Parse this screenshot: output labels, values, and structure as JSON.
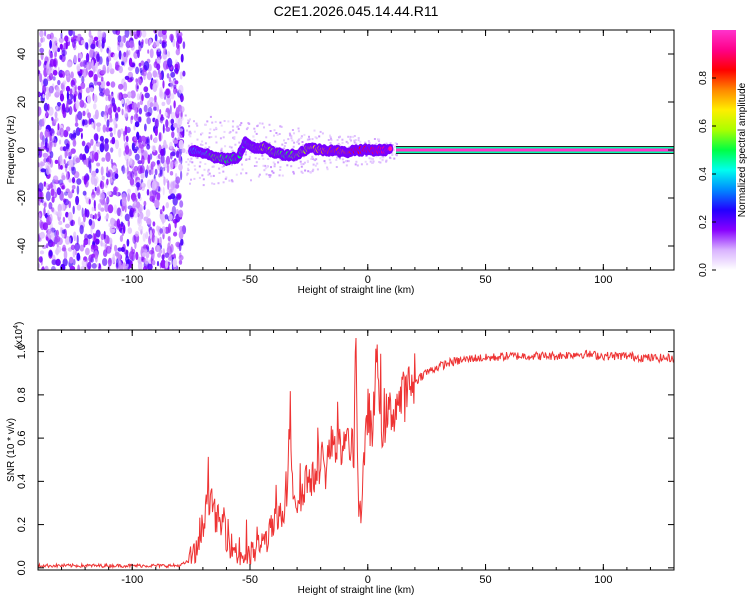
{
  "title": "C2E1.2026.045.14.44.R11",
  "chart_data": [
    {
      "type": "heatmap",
      "panel": "spectrogram",
      "xlabel": "Height of straight line (km)",
      "ylabel": "Frequency (Hz)",
      "xlim": [
        -140,
        130
      ],
      "ylim": [
        -50,
        50
      ],
      "xticks": [
        -100,
        -50,
        0,
        50,
        100
      ],
      "yticks": [
        -40,
        -20,
        0,
        20,
        40
      ],
      "xtick_labels": [
        "-100",
        "-50",
        "0",
        "50",
        "100"
      ],
      "ytick_labels": [
        "-40",
        "-20",
        "0",
        "20",
        "40"
      ],
      "noise_region_x": [
        -140,
        -78
      ],
      "transition_region_x": [
        -78,
        12
      ],
      "stable_line": {
        "x": [
          12,
          130
        ],
        "frequency_hz": 0,
        "amplitude": 1.0
      },
      "ridge_points": [
        {
          "x": -75,
          "f": 0,
          "a": 0.35
        },
        {
          "x": -70,
          "f": -1,
          "a": 0.4
        },
        {
          "x": -65,
          "f": -3,
          "a": 0.55
        },
        {
          "x": -60,
          "f": -4,
          "a": 0.5
        },
        {
          "x": -55,
          "f": -3,
          "a": 0.5
        },
        {
          "x": -52,
          "f": 3,
          "a": 0.45
        },
        {
          "x": -48,
          "f": 1,
          "a": 0.55
        },
        {
          "x": -44,
          "f": 1,
          "a": 0.6
        },
        {
          "x": -40,
          "f": -1,
          "a": 0.55
        },
        {
          "x": -35,
          "f": -2,
          "a": 0.5
        },
        {
          "x": -30,
          "f": -2,
          "a": 0.55
        },
        {
          "x": -25,
          "f": 1,
          "a": 0.6
        },
        {
          "x": -20,
          "f": 0,
          "a": 0.7
        },
        {
          "x": -15,
          "f": 0,
          "a": 0.8
        },
        {
          "x": -10,
          "f": -1,
          "a": 0.75
        },
        {
          "x": -5,
          "f": 0,
          "a": 0.85
        },
        {
          "x": 0,
          "f": 0,
          "a": 0.85
        },
        {
          "x": 5,
          "f": 0,
          "a": 0.9
        },
        {
          "x": 10,
          "f": 0,
          "a": 0.95
        }
      ],
      "colorbar": {
        "label": "Normalized spectral amplitude",
        "range": [
          0,
          1
        ],
        "ticks": [
          0.0,
          0.2,
          0.4,
          0.6,
          0.8
        ],
        "tick_labels": [
          "0.0",
          "0.2",
          "0.4",
          "0.6",
          "0.8"
        ],
        "colors": [
          "#ffffff",
          "#d9b3ff",
          "#8800ff",
          "#2200ff",
          "#0088ff",
          "#00ffee",
          "#00ff44",
          "#aaff00",
          "#ffee00",
          "#ff8800",
          "#ff0000",
          "#ff0088",
          "#ff33cc"
        ]
      }
    },
    {
      "type": "line",
      "panel": "snr",
      "xlabel": "Height of straight line (km)",
      "ylabel": "SNR (10 * v/v)",
      "multiplier_base": "(x10",
      "multiplier_exp": "4",
      "multiplier_close": ")",
      "xlim": [
        -140,
        130
      ],
      "ylim": [
        -0.01,
        1.1
      ],
      "xticks": [
        -100,
        -50,
        0,
        50,
        100
      ],
      "yticks": [
        0.0,
        0.2,
        0.4,
        0.6,
        0.8,
        1.0
      ],
      "xtick_labels": [
        "-100",
        "-50",
        "0",
        "50",
        "100"
      ],
      "ytick_labels": [
        "0.0",
        "0.2",
        "0.4",
        "0.6",
        "0.8",
        "1.0"
      ],
      "color": "#ee3333",
      "series": [
        {
          "name": "SNR",
          "x": [
            -140,
            -120,
            -100,
            -80,
            -76,
            -72,
            -70,
            -68,
            -66,
            -64,
            -62,
            -60,
            -58,
            -56,
            -54,
            -52,
            -50,
            -48,
            -46,
            -44,
            -42,
            -40,
            -38,
            -36,
            -34,
            -33,
            -32,
            -30,
            -28,
            -26,
            -24,
            -22,
            -20,
            -18,
            -16,
            -14,
            -12,
            -10,
            -8,
            -6,
            -5,
            -4,
            -3,
            -2,
            -1,
            0,
            2,
            4,
            6,
            8,
            10,
            12,
            14,
            16,
            18,
            20,
            22,
            24,
            26,
            28,
            30,
            35,
            40,
            45,
            50,
            60,
            70,
            80,
            90,
            100,
            110,
            120,
            130
          ],
          "y": [
            0.01,
            0.01,
            0.01,
            0.01,
            0.03,
            0.08,
            0.2,
            0.35,
            0.28,
            0.22,
            0.2,
            0.15,
            0.1,
            0.08,
            0.05,
            0.06,
            0.05,
            0.08,
            0.1,
            0.12,
            0.15,
            0.2,
            0.22,
            0.25,
            0.38,
            0.75,
            0.4,
            0.3,
            0.35,
            0.42,
            0.38,
            0.45,
            0.5,
            0.45,
            0.55,
            0.6,
            0.55,
            0.5,
            0.6,
            0.5,
            1.1,
            0.3,
            0.25,
            0.4,
            0.55,
            0.75,
            0.6,
            1.02,
            0.65,
            0.7,
            0.72,
            0.75,
            0.78,
            0.8,
            0.84,
            0.86,
            0.88,
            0.9,
            0.91,
            0.92,
            0.93,
            0.95,
            0.96,
            0.97,
            0.97,
            0.98,
            0.98,
            0.98,
            0.99,
            0.98,
            0.98,
            0.97,
            0.97
          ]
        }
      ]
    }
  ]
}
